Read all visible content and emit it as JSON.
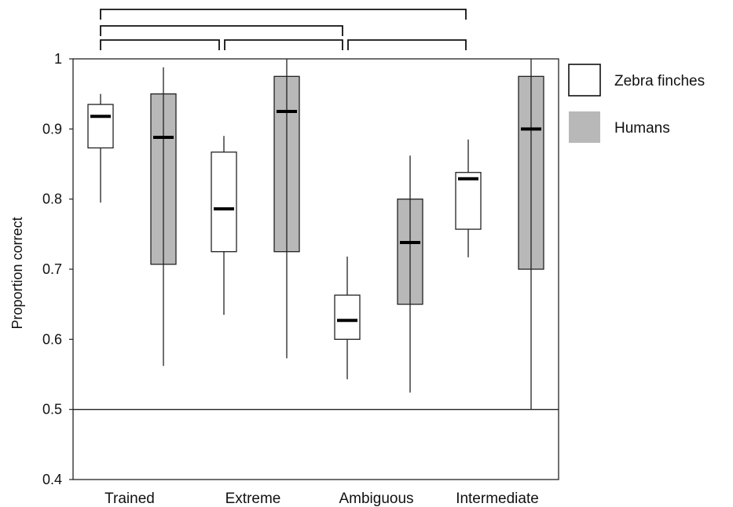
{
  "chart_data": {
    "type": "box",
    "categories": [
      "Trained",
      "Extreme",
      "Ambiguous",
      "Intermediate"
    ],
    "ylabel": "Proportion correct",
    "ylim": [
      0.4,
      1.0
    ],
    "yticks": [
      0.4,
      0.5,
      0.6,
      0.7,
      0.8,
      0.9,
      1.0
    ],
    "ytick_labels": [
      "0.4",
      "0.5",
      "0.6",
      "0.7",
      "0.8",
      "0.9",
      "1"
    ],
    "reference_line": 0.5,
    "legend": {
      "placement": "right"
    },
    "series": [
      {
        "name": "Zebra finches",
        "fill": "#ffffff",
        "boxes": [
          {
            "whisker_low": 0.795,
            "q1": 0.873,
            "median": 0.918,
            "q3": 0.935,
            "whisker_high": 0.95
          },
          {
            "whisker_low": 0.635,
            "q1": 0.725,
            "median": 0.786,
            "q3": 0.867,
            "whisker_high": 0.89
          },
          {
            "whisker_low": 0.543,
            "q1": 0.6,
            "median": 0.627,
            "q3": 0.663,
            "whisker_high": 0.718
          },
          {
            "whisker_low": 0.717,
            "q1": 0.757,
            "median": 0.829,
            "q3": 0.838,
            "whisker_high": 0.885
          }
        ]
      },
      {
        "name": "Humans",
        "fill": "#b8b8b8",
        "boxes": [
          {
            "whisker_low": 0.562,
            "q1": 0.707,
            "median": 0.888,
            "q3": 0.95,
            "whisker_high": 0.988
          },
          {
            "whisker_low": 0.573,
            "q1": 0.725,
            "median": 0.925,
            "q3": 0.975,
            "whisker_high": 1.0
          },
          {
            "whisker_low": 0.524,
            "q1": 0.65,
            "median": 0.738,
            "q3": 0.8,
            "whisker_high": 0.862
          },
          {
            "whisker_low": 0.5,
            "q1": 0.7,
            "median": 0.9,
            "q3": 0.975,
            "whisker_high": 1.0
          }
        ]
      }
    ],
    "comparison_brackets": [
      {
        "from": "Trained",
        "to": "Intermediate",
        "level": 3
      },
      {
        "from": "Trained",
        "to": "Ambiguous",
        "level": 2
      },
      {
        "from": "Trained",
        "to": "Extreme",
        "level": 1
      },
      {
        "from": "Extreme",
        "to": "Ambiguous",
        "level": 1
      },
      {
        "from": "Ambiguous",
        "to": "Intermediate",
        "level": 1
      }
    ]
  }
}
